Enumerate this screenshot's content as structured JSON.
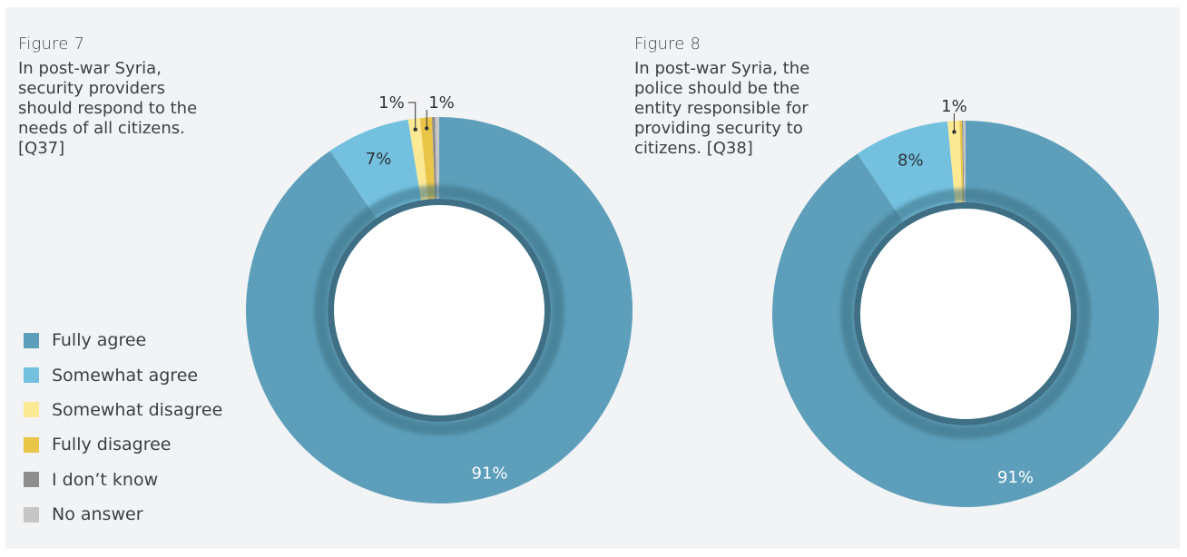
{
  "colors": {
    "fully_agree": "#5d9fba",
    "somewhat_agree": "#74c1df",
    "somewhat_disagree": "#fce993",
    "fully_disagree": "#e9c548",
    "dont_know": "#8e8e8e",
    "no_answer": "#c6c6c6"
  },
  "legend": [
    {
      "label": "Fully agree",
      "color": "#5d9fba"
    },
    {
      "label": "Somewhat agree",
      "color": "#74c1df"
    },
    {
      "label": "Somewhat disagree",
      "color": "#fce993"
    },
    {
      "label": "Fully disagree",
      "color": "#e9c548"
    },
    {
      "label": "I don’t know",
      "color": "#8e8e8e"
    },
    {
      "label": "No answer",
      "color": "#c6c6c6"
    }
  ],
  "figures": [
    {
      "label": "Figure 7",
      "caption": [
        "In post-war Syria,",
        "security providers",
        "should respond to the",
        "needs of all citizens.",
        "[Q37]"
      ]
    },
    {
      "label": "Figure 8",
      "caption": [
        "In post-war Syria, the",
        "police should be the",
        "entity responsible for",
        "providing security to",
        "citizens. [Q38]"
      ]
    }
  ],
  "chart_data": [
    {
      "type": "pie",
      "series": [
        {
          "name": "Fully agree",
          "value": 91,
          "label": "91%"
        },
        {
          "name": "Somewhat agree",
          "value": 7,
          "label": "7%"
        },
        {
          "name": "Somewhat disagree",
          "value": 1,
          "label": "1%"
        },
        {
          "name": "Fully disagree",
          "value": 1,
          "label": "1%"
        },
        {
          "name": "I don’t know",
          "value": 0.25,
          "label": ""
        },
        {
          "name": "No answer",
          "value": 0.35,
          "label": ""
        }
      ]
    },
    {
      "type": "pie",
      "series": [
        {
          "name": "Fully agree",
          "value": 91,
          "label": "91%"
        },
        {
          "name": "Somewhat agree",
          "value": 8,
          "label": "8%"
        },
        {
          "name": "Somewhat disagree",
          "value": 1,
          "label": "1%"
        },
        {
          "name": "Fully disagree",
          "value": 0.2,
          "label": ""
        },
        {
          "name": "I don’t know",
          "value": 0.1,
          "label": ""
        },
        {
          "name": "No answer",
          "value": 0.2,
          "label": ""
        }
      ]
    }
  ]
}
